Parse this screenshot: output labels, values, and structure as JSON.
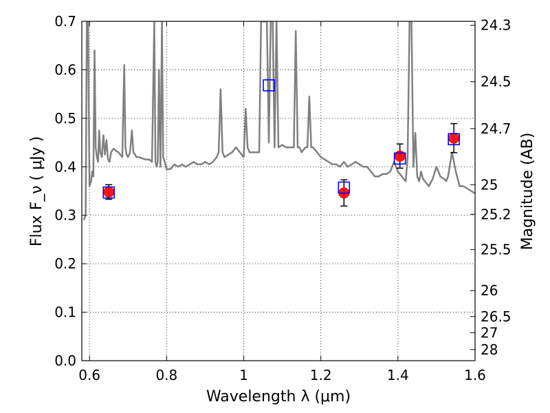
{
  "chart_data": {
    "type": "scatter",
    "title": "",
    "xlabel": "Wavelength  λ (μm)",
    "ylabel": "Flux  F_ν  ( μJy )",
    "ylabel_right": "Magnitude (AB)",
    "xlim": [
      0.58,
      1.6
    ],
    "ylim": [
      0,
      0.7
    ],
    "grid": true,
    "x_ticks": [
      0.6,
      0.8,
      1.0,
      1.2,
      1.4,
      1.6
    ],
    "x_tick_labels": [
      "0.6",
      "0.8",
      "1",
      "1.2",
      "1.4",
      "1.6"
    ],
    "y_ticks": [
      0.0,
      0.1,
      0.2,
      0.3,
      0.4,
      0.5,
      0.6,
      0.7
    ],
    "y_tick_labels": [
      "0.0",
      "0.1",
      "0.2",
      "0.3",
      "0.4",
      "0.5",
      "0.6",
      "0.7"
    ],
    "right_ticks_mag": [
      24.3,
      24.5,
      24.7,
      25,
      25.2,
      25.5,
      26,
      26.5,
      27,
      28
    ],
    "right_tick_labels": [
      "24.3",
      "24.5",
      "24.7",
      "25",
      "25.2",
      "25.5",
      "26",
      "26.5",
      "27",
      "28"
    ],
    "series": [
      {
        "kind": "line",
        "color": "#808080",
        "x": [
          0.585,
          0.59,
          0.593,
          0.596,
          0.6,
          0.604,
          0.607,
          0.61,
          0.613,
          0.616,
          0.619,
          0.622,
          0.625,
          0.628,
          0.632,
          0.636,
          0.64,
          0.644,
          0.648,
          0.652,
          0.656,
          0.66,
          0.663,
          0.666,
          0.67,
          0.675,
          0.68,
          0.685,
          0.69,
          0.693,
          0.696,
          0.7,
          0.705,
          0.71,
          0.714,
          0.718,
          0.722,
          0.728,
          0.735,
          0.745,
          0.755,
          0.762,
          0.768,
          0.771,
          0.774,
          0.777,
          0.78,
          0.784,
          0.788,
          0.791,
          0.795,
          0.8,
          0.804,
          0.81,
          0.82,
          0.83,
          0.84,
          0.85,
          0.86,
          0.87,
          0.88,
          0.89,
          0.9,
          0.91,
          0.92,
          0.93,
          0.935,
          0.94,
          0.945,
          0.95,
          0.96,
          0.97,
          0.98,
          0.99,
          1.0,
          1.005,
          1.01,
          1.015,
          1.02,
          1.03,
          1.04,
          1.045,
          1.05,
          1.055,
          1.06,
          1.065,
          1.07,
          1.075,
          1.08,
          1.085,
          1.09,
          1.1,
          1.11,
          1.12,
          1.13,
          1.135,
          1.14,
          1.145,
          1.15,
          1.16,
          1.165,
          1.17,
          1.175,
          1.18,
          1.19,
          1.2,
          1.21,
          1.22,
          1.23,
          1.24,
          1.25,
          1.26,
          1.27,
          1.28,
          1.29,
          1.3,
          1.31,
          1.32,
          1.33,
          1.34,
          1.35,
          1.36,
          1.37,
          1.38,
          1.39,
          1.395,
          1.4,
          1.41,
          1.42,
          1.425,
          1.43,
          1.435,
          1.44,
          1.445,
          1.45,
          1.455,
          1.46,
          1.465,
          1.47,
          1.48,
          1.49,
          1.5,
          1.51,
          1.52,
          1.525,
          1.53,
          1.54,
          1.55,
          1.56,
          1.57,
          1.58,
          1.59,
          1.6
        ],
        "y": [
          0.29,
          0.3,
          0.7,
          0.7,
          0.36,
          0.37,
          0.39,
          0.38,
          0.64,
          0.44,
          0.42,
          0.41,
          0.475,
          0.43,
          0.42,
          0.465,
          0.425,
          0.455,
          0.415,
          0.41,
          0.43,
          0.435,
          0.437,
          0.435,
          0.432,
          0.43,
          0.425,
          0.42,
          0.61,
          0.44,
          0.425,
          0.42,
          0.43,
          0.475,
          0.43,
          0.425,
          0.42,
          0.42,
          0.418,
          0.415,
          0.415,
          0.41,
          0.7,
          0.41,
          0.4,
          0.41,
          0.6,
          0.4,
          0.7,
          0.42,
          0.41,
          0.395,
          0.395,
          0.395,
          0.405,
          0.4,
          0.405,
          0.4,
          0.405,
          0.41,
          0.405,
          0.405,
          0.41,
          0.405,
          0.41,
          0.42,
          0.43,
          0.56,
          0.43,
          0.42,
          0.425,
          0.43,
          0.44,
          0.43,
          0.42,
          0.52,
          0.44,
          0.43,
          0.43,
          0.43,
          0.43,
          0.7,
          0.7,
          0.7,
          0.7,
          0.45,
          0.7,
          0.7,
          0.44,
          0.7,
          0.44,
          0.445,
          0.44,
          0.44,
          0.44,
          0.68,
          0.44,
          0.44,
          0.43,
          0.44,
          0.44,
          0.545,
          0.44,
          0.44,
          0.43,
          0.42,
          0.415,
          0.41,
          0.405,
          0.405,
          0.4,
          0.41,
          0.4,
          0.405,
          0.41,
          0.405,
          0.4,
          0.4,
          0.39,
          0.38,
          0.38,
          0.385,
          0.385,
          0.39,
          0.41,
          0.4,
          0.39,
          0.38,
          0.37,
          0.42,
          0.7,
          0.7,
          0.4,
          0.47,
          0.38,
          0.37,
          0.39,
          0.375,
          0.37,
          0.36,
          0.375,
          0.4,
          0.38,
          0.375,
          0.37,
          0.38,
          0.43,
          0.39,
          0.36,
          0.36,
          0.355,
          0.35,
          0.345
        ]
      },
      {
        "kind": "points",
        "name": "",
        "marker": "circle",
        "color": "#ff0000",
        "x": [
          0.65,
          1.26,
          1.405,
          1.545
        ],
        "y": [
          0.348,
          0.346,
          0.422,
          0.459
        ],
        "yerr": [
          0.015,
          0.027,
          0.025,
          0.03
        ]
      },
      {
        "kind": "points",
        "name": "",
        "marker": "open-square",
        "color": "#0000ff",
        "x": [
          0.65,
          1.065,
          1.26,
          1.405,
          1.545
        ],
        "y": [
          0.347,
          0.568,
          0.357,
          0.417,
          0.457
        ]
      }
    ]
  }
}
